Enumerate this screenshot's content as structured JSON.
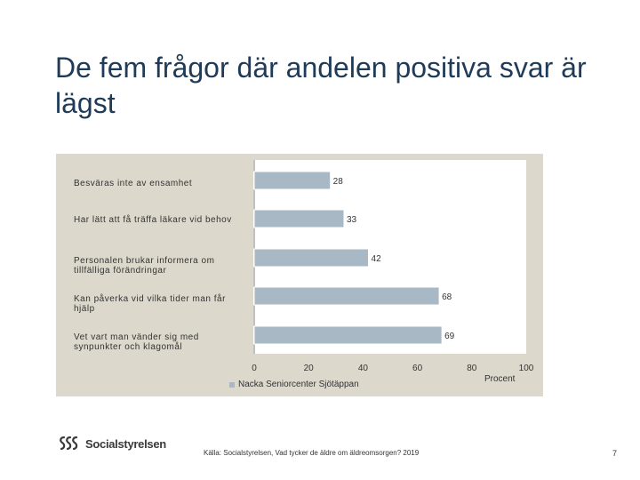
{
  "title": "De fem frågor där andelen positiva svar är lägst",
  "chart_data": {
    "type": "bar",
    "orientation": "horizontal",
    "categories": [
      "Besväras inte av ensamhet",
      "Har lätt att få träffa läkare vid behov",
      "Personalen brukar informera om tillfälliga förändringar",
      "Kan påverka vid vilka tider man får hjälp",
      "Vet vart man vänder sig med synpunkter och klagomål"
    ],
    "series": [
      {
        "name": "Nacka Seniorcenter Sjötäppan",
        "values": [
          28,
          33,
          42,
          68,
          69
        ]
      }
    ],
    "xlabel": "Procent",
    "xlim": [
      0,
      100
    ],
    "xticks": [
      0,
      20,
      40,
      60,
      80,
      100
    ],
    "legend": "bottom-center",
    "bar_color": "#a8b8c4"
  },
  "footer": {
    "logo_text": "Socialstyrelsen",
    "source": "Källa: Socialstyrelsen, Vad tycker de äldre om äldreomsorgen? 2019",
    "page_number": "7"
  }
}
